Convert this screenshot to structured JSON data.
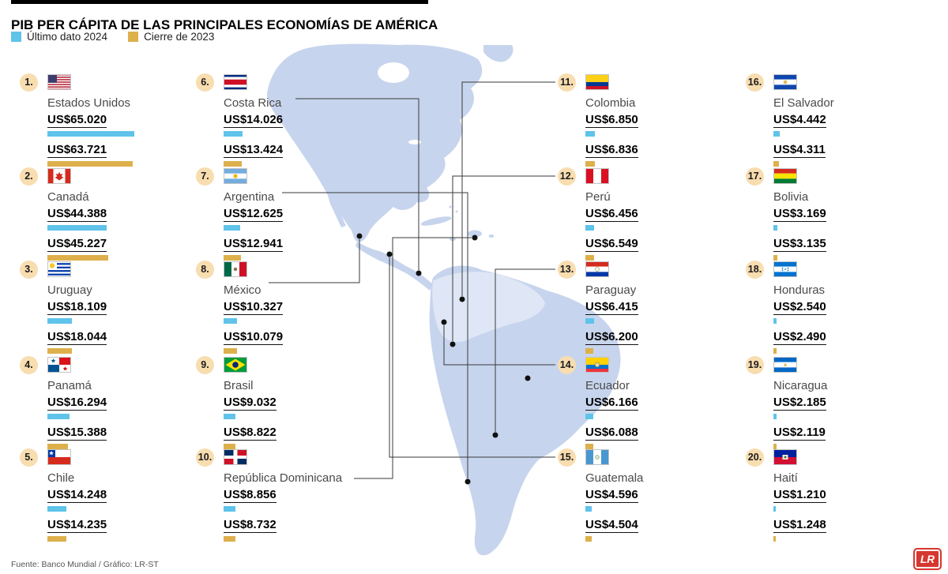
{
  "header": {
    "title": "PIB PER CÁPITA DE LAS PRINCIPALES ECONOMÍAS DE AMÉRICA"
  },
  "legend": [
    {
      "label": "Último dato 2024",
      "color": "#5fc3ea"
    },
    {
      "label": "Cierre de 2023",
      "color": "#deb04c"
    }
  ],
  "footer": {
    "credit": "Fuente: Banco Mundial / Gráfico: LR-ST",
    "logo_text": "LR"
  },
  "colors": {
    "bar_2024": "#5fc3ea",
    "bar_2023": "#deb04c",
    "rank_badge": "#f8ddb0",
    "map_fill": "#c7d4ed",
    "map_light": "#dfe7f6",
    "leader_line": "#3a3a3a",
    "dot": "#111111"
  },
  "chart_data": {
    "type": "bar",
    "title": "PIB PER CÁPITA DE LAS PRINCIPALES ECONOMÍAS DE AMÉRICA",
    "series": [
      "Último dato 2024",
      "Cierre de 2023"
    ],
    "unit": "US$",
    "max_scale": 65020,
    "countries": [
      {
        "rank": "1.",
        "name": "Estados Unidos",
        "flag_code": "us",
        "value_2024": 65020,
        "value_2023": 63721,
        "label_2024": "US$65.020",
        "label_2023": "US$63.721"
      },
      {
        "rank": "2.",
        "name": "Canadá",
        "flag_code": "ca",
        "value_2024": 44388,
        "value_2023": 45227,
        "label_2024": "US$44.388",
        "label_2023": "US$45.227"
      },
      {
        "rank": "3.",
        "name": "Uruguay",
        "flag_code": "uy",
        "value_2024": 18109,
        "value_2023": 18044,
        "label_2024": "US$18.109",
        "label_2023": "US$18.044"
      },
      {
        "rank": "4.",
        "name": "Panamá",
        "flag_code": "pa",
        "value_2024": 16294,
        "value_2023": 15388,
        "label_2024": "US$16.294",
        "label_2023": "US$15.388"
      },
      {
        "rank": "5.",
        "name": "Chile",
        "flag_code": "cl",
        "value_2024": 14248,
        "value_2023": 14235,
        "label_2024": "US$14.248",
        "label_2023": "US$14.235"
      },
      {
        "rank": "6.",
        "name": "Costa Rica",
        "flag_code": "cr",
        "value_2024": 14026,
        "value_2023": 13424,
        "label_2024": "US$14.026",
        "label_2023": "US$13.424"
      },
      {
        "rank": "7.",
        "name": "Argentina",
        "flag_code": "ar",
        "value_2024": 12625,
        "value_2023": 12941,
        "label_2024": "US$12.625",
        "label_2023": "US$12.941"
      },
      {
        "rank": "8.",
        "name": "México",
        "flag_code": "mx",
        "value_2024": 10327,
        "value_2023": 10079,
        "label_2024": "US$10.327",
        "label_2023": "US$10.079"
      },
      {
        "rank": "9.",
        "name": "Brasil",
        "flag_code": "br",
        "value_2024": 9032,
        "value_2023": 8822,
        "label_2024": "US$9.032",
        "label_2023": "US$8.822"
      },
      {
        "rank": "10.",
        "name": "República Dominicana",
        "flag_code": "do",
        "value_2024": 8856,
        "value_2023": 8732,
        "label_2024": "US$8.856",
        "label_2023": "US$8.732"
      },
      {
        "rank": "11.",
        "name": "Colombia",
        "flag_code": "co",
        "value_2024": 6850,
        "value_2023": 6836,
        "label_2024": "US$6.850",
        "label_2023": "US$6.836"
      },
      {
        "rank": "12.",
        "name": "Perú",
        "flag_code": "pe",
        "value_2024": 6456,
        "value_2023": 6549,
        "label_2024": "US$6.456",
        "label_2023": "US$6.549"
      },
      {
        "rank": "13.",
        "name": "Paraguay",
        "flag_code": "py",
        "value_2024": 6415,
        "value_2023": 6200,
        "label_2024": "US$6.415",
        "label_2023": "US$6.200"
      },
      {
        "rank": "14.",
        "name": "Ecuador",
        "flag_code": "ec",
        "value_2024": 6166,
        "value_2023": 6088,
        "label_2024": "US$6.166",
        "label_2023": "US$6.088"
      },
      {
        "rank": "15.",
        "name": "Guatemala",
        "flag_code": "gt",
        "value_2024": 4596,
        "value_2023": 4504,
        "label_2024": "US$4.596",
        "label_2023": "US$4.504"
      },
      {
        "rank": "16.",
        "name": "El Salvador",
        "flag_code": "sv",
        "value_2024": 4442,
        "value_2023": 4311,
        "label_2024": "US$4.442",
        "label_2023": "US$4.311"
      },
      {
        "rank": "17.",
        "name": "Bolivia",
        "flag_code": "bo",
        "value_2024": 3169,
        "value_2023": 3135,
        "label_2024": "US$3.169",
        "label_2023": "US$3.135"
      },
      {
        "rank": "18.",
        "name": "Honduras",
        "flag_code": "hn",
        "value_2024": 2540,
        "value_2023": 2490,
        "label_2024": "US$2.540",
        "label_2023": "US$2.490"
      },
      {
        "rank": "19.",
        "name": "Nicaragua",
        "flag_code": "ni",
        "value_2024": 2185,
        "value_2023": 2119,
        "label_2024": "US$2.185",
        "label_2023": "US$2.119"
      },
      {
        "rank": "20.",
        "name": "Haití",
        "flag_code": "ht",
        "value_2024": 1210,
        "value_2023": 1248,
        "label_2024": "US$1.210",
        "label_2023": "US$1.248"
      }
    ]
  }
}
